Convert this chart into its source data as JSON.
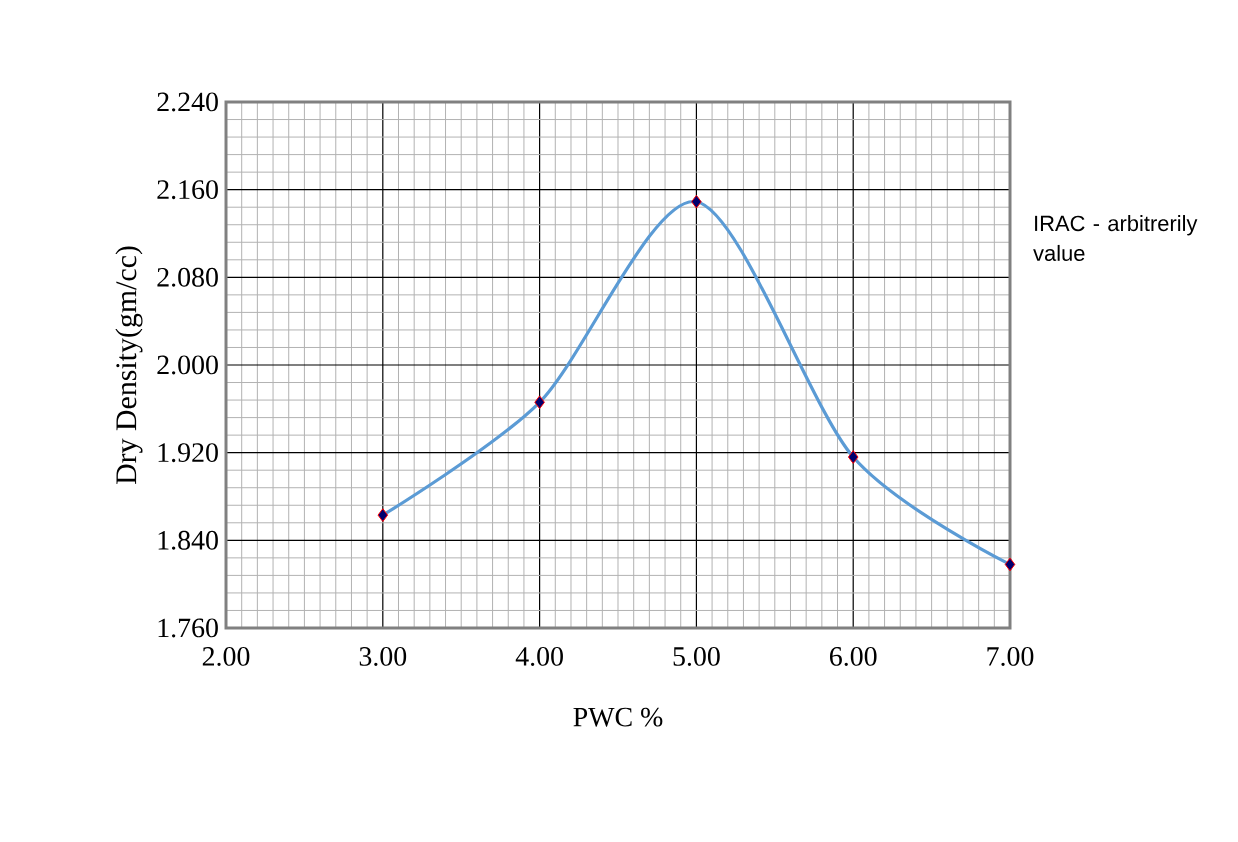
{
  "chart_data": {
    "type": "line",
    "xlabel": "PWC %",
    "ylabel": "Dry  Density(gm/cc)",
    "x": [
      3,
      4,
      5,
      6,
      7
    ],
    "series": [
      {
        "color": "#5b9bd5",
        "values": [
          1.863,
          1.966,
          2.149,
          1.916,
          1.818
        ]
      }
    ],
    "xlim": [
      2,
      7
    ],
    "ylim": [
      1.76,
      2.24
    ],
    "xticks": [
      {
        "value": 2,
        "label": "2.00"
      },
      {
        "value": 3,
        "label": "3.00"
      },
      {
        "value": 4,
        "label": "4.00"
      },
      {
        "value": 5,
        "label": "5.00"
      },
      {
        "value": 6,
        "label": "6.00"
      },
      {
        "value": 7,
        "label": "7.00"
      }
    ],
    "yticks": [
      {
        "value": 1.76,
        "label": "1.760"
      },
      {
        "value": 1.84,
        "label": "1.840"
      },
      {
        "value": 1.92,
        "label": "1.920"
      },
      {
        "value": 2.0,
        "label": "2.000"
      },
      {
        "value": 2.08,
        "label": "2.080"
      },
      {
        "value": 2.16,
        "label": "2.160"
      },
      {
        "value": 2.24,
        "label": "2.240"
      }
    ],
    "grid": true,
    "marker": "diamond",
    "line_style": "solid",
    "annotations": [
      "IRAC  - arbitrerily value"
    ]
  }
}
